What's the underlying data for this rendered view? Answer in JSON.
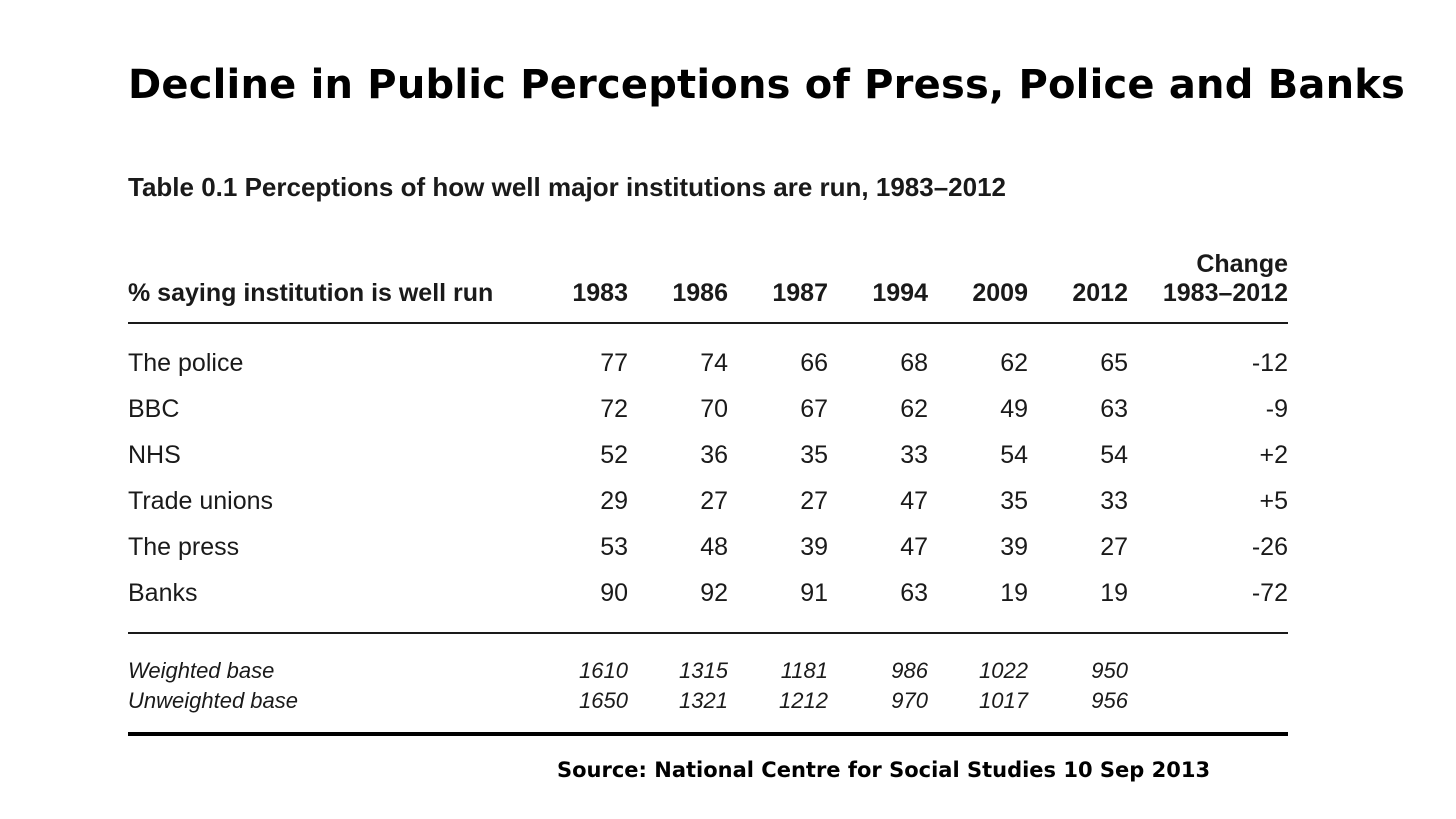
{
  "title": "Decline in Public Perceptions of Press, Police and Banks",
  "table_caption": "Table 0.1 Perceptions of how well major institutions are run, 1983–2012",
  "table": {
    "header_label": "% saying institution is well run",
    "years": [
      "1983",
      "1986",
      "1987",
      "1994",
      "2009",
      "2012"
    ],
    "change_header_line1": "Change",
    "change_header_line2": "1983–2012",
    "rows": [
      {
        "label": "The police",
        "values": [
          "77",
          "74",
          "66",
          "68",
          "62",
          "65"
        ],
        "change": "-12"
      },
      {
        "label": "BBC",
        "values": [
          "72",
          "70",
          "67",
          "62",
          "49",
          "63"
        ],
        "change": "-9"
      },
      {
        "label": "NHS",
        "values": [
          "52",
          "36",
          "35",
          "33",
          "54",
          "54"
        ],
        "change": "+2"
      },
      {
        "label": "Trade unions",
        "values": [
          "29",
          "27",
          "27",
          "47",
          "35",
          "33"
        ],
        "change": "+5"
      },
      {
        "label": "The press",
        "values": [
          "53",
          "48",
          "39",
          "47",
          "39",
          "27"
        ],
        "change": "-26"
      },
      {
        "label": "Banks",
        "values": [
          "90",
          "92",
          "91",
          "63",
          "19",
          "19"
        ],
        "change": "-72"
      }
    ],
    "bases": [
      {
        "label": "Weighted base",
        "values": [
          "1610",
          "1315",
          "1181",
          "986",
          "1022",
          "950"
        ]
      },
      {
        "label": "Unweighted base",
        "values": [
          "1650",
          "1321",
          "1212",
          "970",
          "1017",
          "956"
        ]
      }
    ]
  },
  "source": "Source: National Centre for Social Studies 10 Sep 2013"
}
